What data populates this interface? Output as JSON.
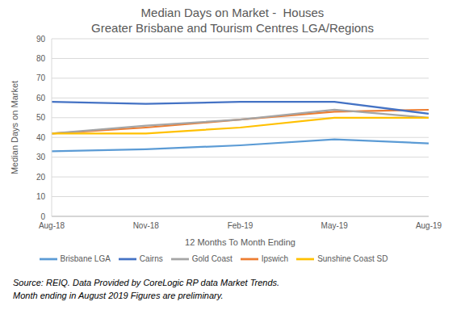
{
  "chart_data": {
    "type": "line",
    "title": "Median Days on Market -  Houses",
    "subtitle": "Greater Brisbane and Tourism Centres LGA/Regions",
    "x_label": "12 Months To Month Ending",
    "y_label": "Median Days on Market",
    "categories": [
      "Aug-18",
      "Nov-18",
      "Feb-19",
      "May-19",
      "Aug-19"
    ],
    "series": [
      {
        "name": "Brisbane LGA",
        "color": "#5B9BD5",
        "values": [
          33,
          34,
          36,
          39,
          37
        ]
      },
      {
        "name": "Ipswich",
        "color": "#ED7D31",
        "values": [
          42,
          45,
          49,
          53,
          54
        ]
      },
      {
        "name": "Gold Coast",
        "color": "#A5A5A5",
        "values": [
          42,
          46,
          49,
          54,
          50
        ]
      },
      {
        "name": "Sunshine Coast SD",
        "color": "#FFC000",
        "values": [
          42,
          42,
          45,
          50,
          50
        ]
      },
      {
        "name": "Cairns",
        "color": "#4472C4",
        "values": [
          58,
          57,
          58,
          58,
          52
        ]
      }
    ],
    "ylim": [
      0,
      90
    ],
    "yticks": [
      0,
      10,
      20,
      30,
      40,
      50,
      60,
      70,
      80,
      90
    ],
    "grid": true,
    "legend": "bottom",
    "annotations": [
      "Source: REIQ. Data Provided by CoreLogic RP data Market Trends.",
      "Month ending in August 2019 Figures are preliminary."
    ]
  }
}
